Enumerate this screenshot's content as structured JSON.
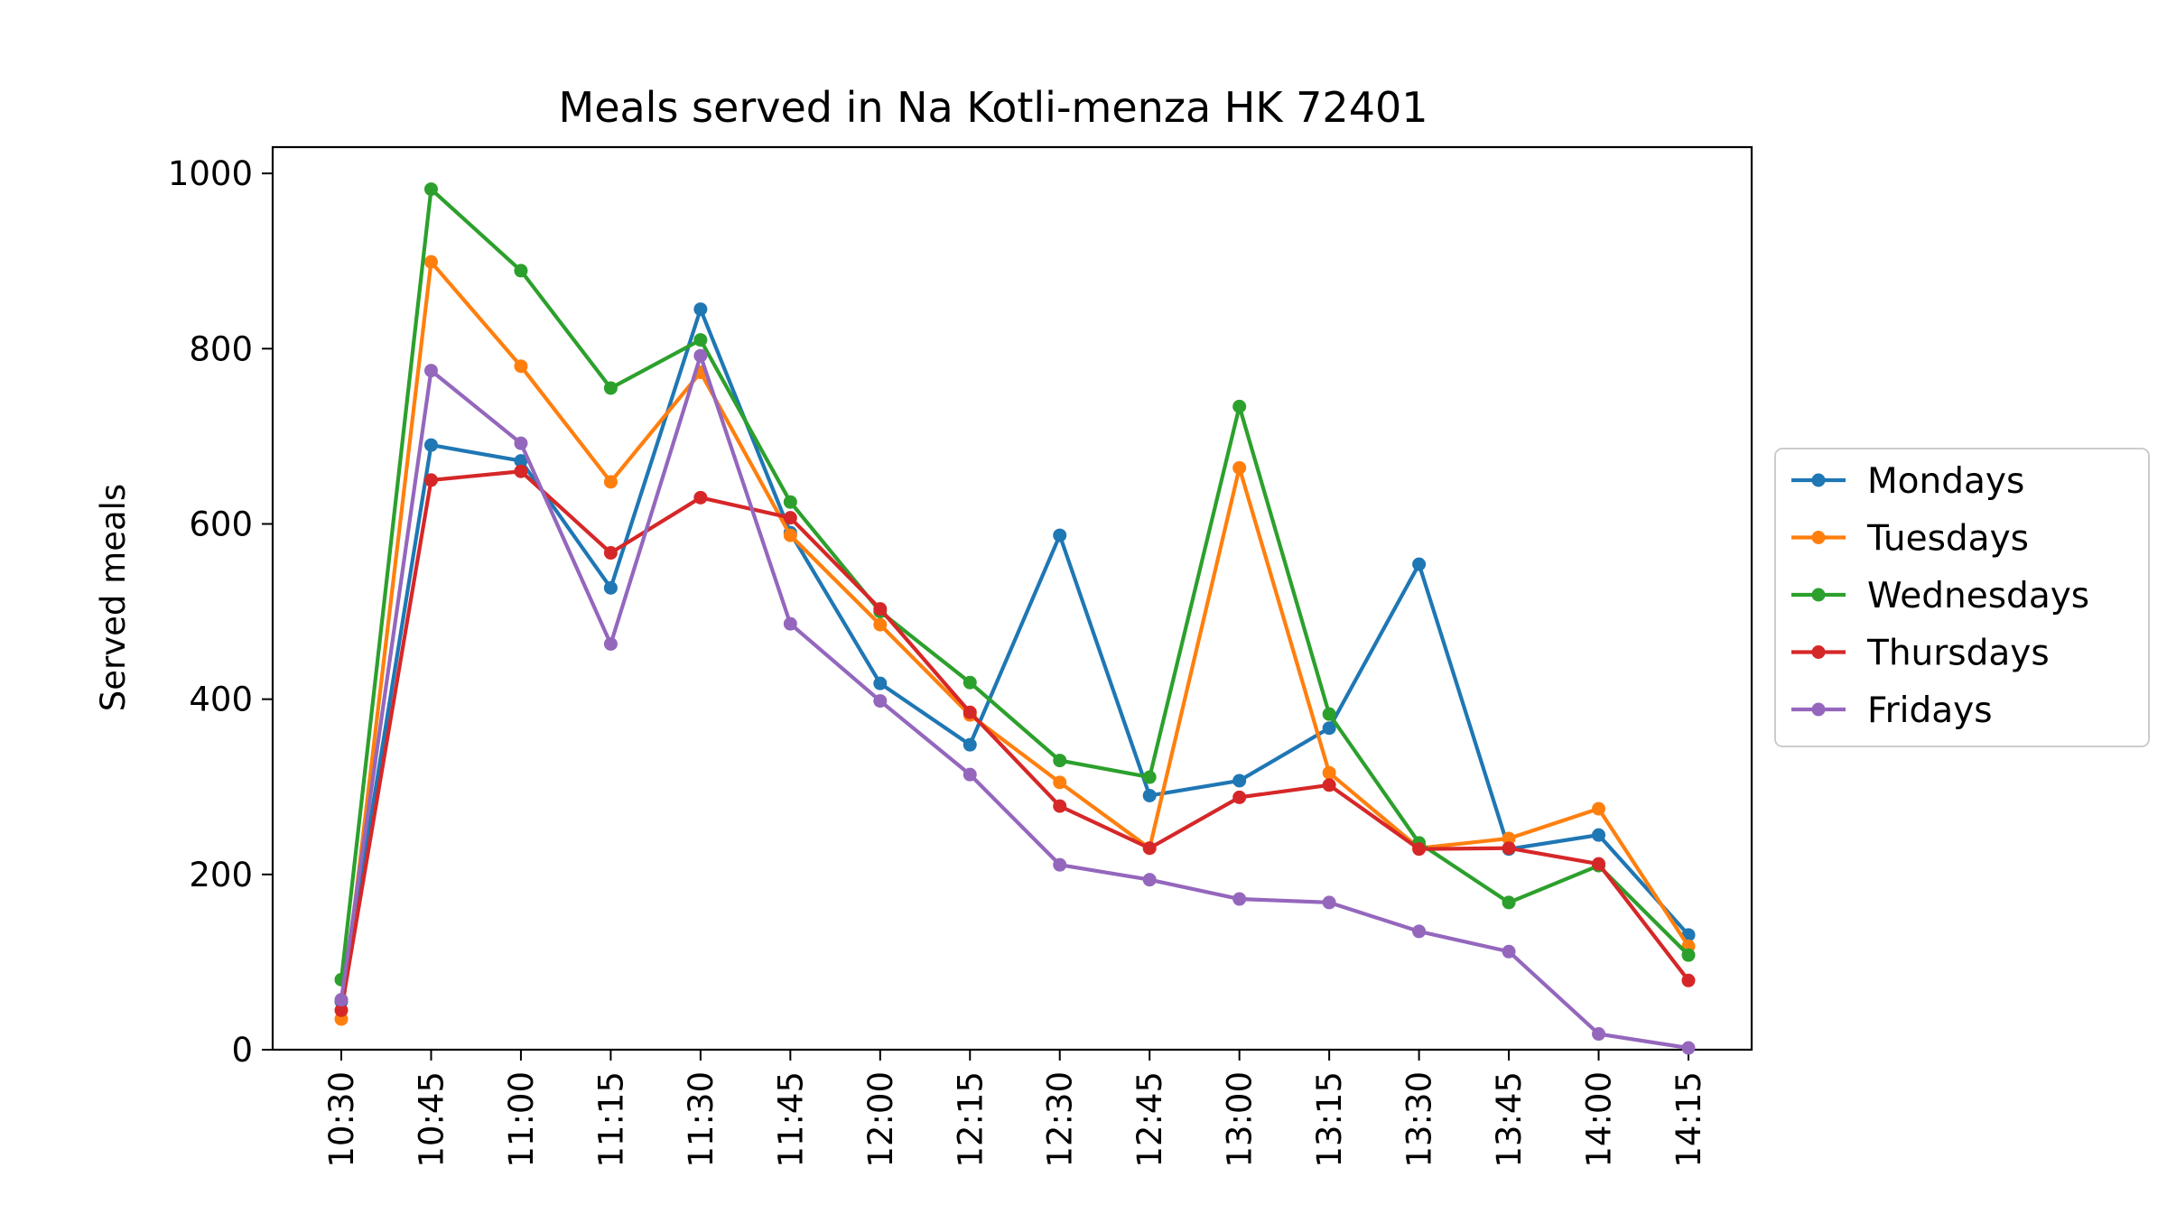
{
  "chart_data": {
    "type": "line",
    "title": "Meals served in Na Kotli-menza HK 72401",
    "xlabel": "",
    "ylabel": "Served meals",
    "categories": [
      "10:30",
      "10:45",
      "11:00",
      "11:15",
      "11:30",
      "11:45",
      "12:00",
      "12:15",
      "12:30",
      "12:45",
      "13:00",
      "13:15",
      "13:30",
      "13:45",
      "14:00",
      "14:15"
    ],
    "yticks": [
      0,
      200,
      400,
      600,
      800,
      1000
    ],
    "ylim": [
      0,
      1030
    ],
    "grid": false,
    "legend_position": "right-outside",
    "series": [
      {
        "name": "Mondays",
        "color": "#1f77b4",
        "values": [
          55,
          690,
          672,
          527,
          845,
          590,
          418,
          348,
          587,
          290,
          307,
          367,
          554,
          229,
          245,
          131
        ]
      },
      {
        "name": "Tuesdays",
        "color": "#ff7f0e",
        "values": [
          35,
          899,
          780,
          648,
          773,
          587,
          485,
          382,
          305,
          230,
          664,
          316,
          230,
          241,
          275,
          118
        ]
      },
      {
        "name": "Wednesdays",
        "color": "#2ca02c",
        "values": [
          80,
          982,
          889,
          755,
          810,
          625,
          500,
          419,
          330,
          311,
          734,
          383,
          236,
          168,
          210,
          108
        ]
      },
      {
        "name": "Thursdays",
        "color": "#d62728",
        "values": [
          45,
          650,
          660,
          567,
          630,
          607,
          503,
          385,
          278,
          230,
          288,
          302,
          229,
          230,
          212,
          79
        ]
      },
      {
        "name": "Fridays",
        "color": "#9467bd",
        "values": [
          57,
          775,
          692,
          463,
          792,
          486,
          398,
          314,
          211,
          194,
          172,
          168,
          135,
          112,
          18,
          2
        ]
      }
    ]
  }
}
